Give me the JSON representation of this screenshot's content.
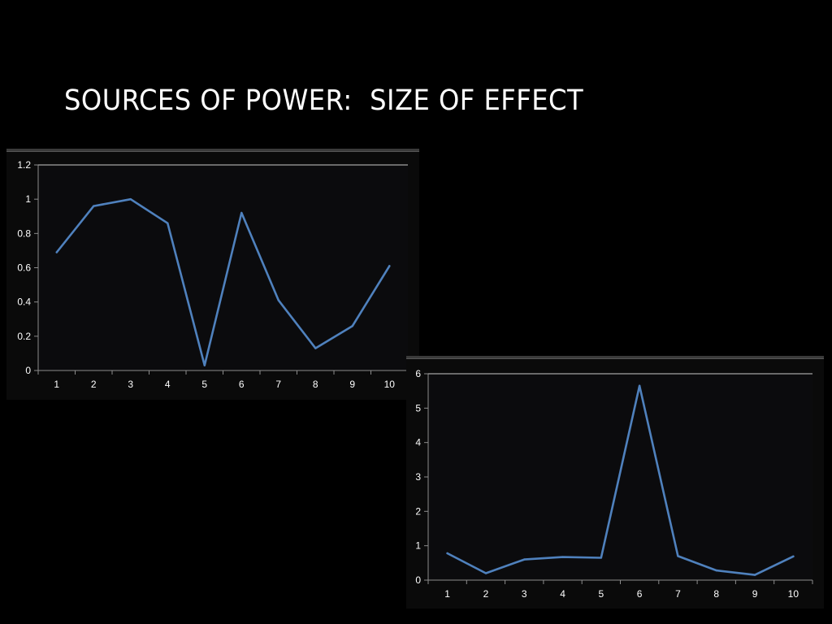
{
  "slide": {
    "title": "SOURCES OF POWER:  SIZE OF EFFECT"
  },
  "colors": {
    "background": "#000000",
    "plot_background": "#0b0b0d",
    "line": "#4f81bd",
    "axis": "#8c8c8c",
    "text": "#ffffff"
  },
  "chart_data": [
    {
      "type": "line",
      "categories": [
        "1",
        "2",
        "3",
        "4",
        "5",
        "6",
        "7",
        "8",
        "9",
        "10"
      ],
      "series": [
        {
          "values": [
            0.69,
            0.96,
            1.0,
            0.86,
            0.03,
            0.92,
            0.41,
            0.13,
            0.26,
            0.61
          ]
        }
      ],
      "ylim": [
        0,
        1.2
      ],
      "yticks": [
        "0",
        "0.2",
        "0.4",
        "0.6",
        "0.8",
        "1",
        "1.2"
      ],
      "grid": false,
      "legend": "none"
    },
    {
      "type": "line",
      "categories": [
        "1",
        "2",
        "3",
        "4",
        "5",
        "6",
        "7",
        "8",
        "9",
        "10"
      ],
      "series": [
        {
          "values": [
            0.78,
            0.2,
            0.6,
            0.67,
            0.65,
            5.65,
            0.7,
            0.28,
            0.15,
            0.69
          ]
        }
      ],
      "ylim": [
        0,
        6
      ],
      "yticks": [
        "0",
        "1",
        "2",
        "3",
        "4",
        "5",
        "6"
      ],
      "grid": false,
      "legend": "none"
    }
  ]
}
